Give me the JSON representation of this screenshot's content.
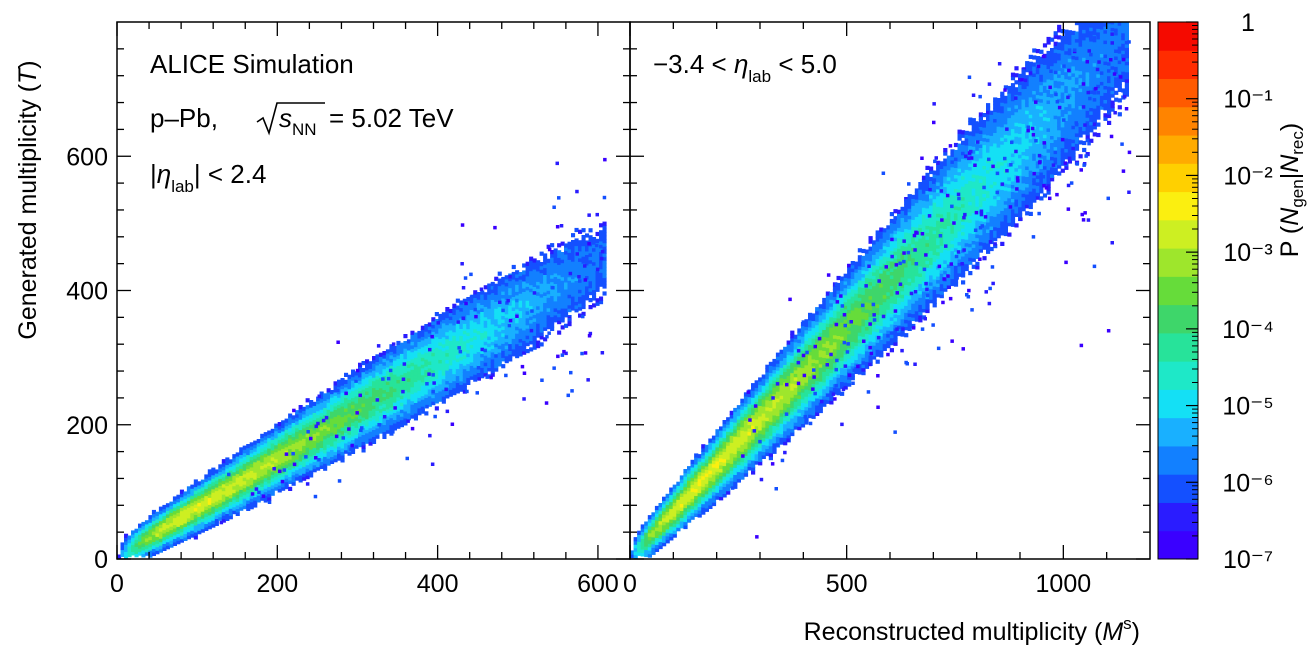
{
  "chart_data": [
    {
      "type": "heatmap",
      "panel": "left",
      "xlabel": "",
      "ylabel": "Generated multiplicity (T)",
      "xlim": [
        0,
        640
      ],
      "ylim": [
        0,
        800
      ],
      "x_ticks": [
        0,
        200,
        400,
        600
      ],
      "y_ticks": [
        0,
        200,
        400,
        600
      ],
      "annotations": {
        "experiment": "ALICE Simulation",
        "system_prefix": "p–Pb,",
        "energy_suffix": "= 5.02 TeV",
        "eta_cut": "|η_lab| < 2.4"
      },
      "band": {
        "slope": 0.73,
        "x_max": 610,
        "density_peak_x": 90
      }
    },
    {
      "type": "heatmap",
      "panel": "right",
      "xlabel": "Reconstructed multiplicity (M^s)",
      "ylabel": "",
      "xlim": [
        0,
        1200
      ],
      "ylim": [
        0,
        800
      ],
      "x_ticks": [
        0,
        500,
        1000
      ],
      "annotations": {
        "eta_cut": "−3.4 < η_lab < 5.0"
      },
      "band": {
        "slope": 0.68,
        "x_max": 1150,
        "density_peak_x": 170
      }
    }
  ],
  "colorbar": {
    "label": "P (N_gen|N_rec)",
    "scale": "log",
    "range": [
      1e-07,
      1
    ],
    "tick_labels": [
      "1",
      "10⁻¹",
      "10⁻²",
      "10⁻³",
      "10⁻⁴",
      "10⁻⁵",
      "10⁻⁶",
      "10⁻⁷"
    ],
    "colors": [
      "#3a00ff",
      "#2a1cff",
      "#1450ff",
      "#1280ff",
      "#19b0ff",
      "#14e0f5",
      "#1ee8c8",
      "#27e39a",
      "#3ed66a",
      "#66dc3a",
      "#9ee62c",
      "#cdef22",
      "#fbef10",
      "#ffd000",
      "#ffab00",
      "#ff8400",
      "#ff5a00",
      "#ff2c00",
      "#f50a00"
    ]
  }
}
